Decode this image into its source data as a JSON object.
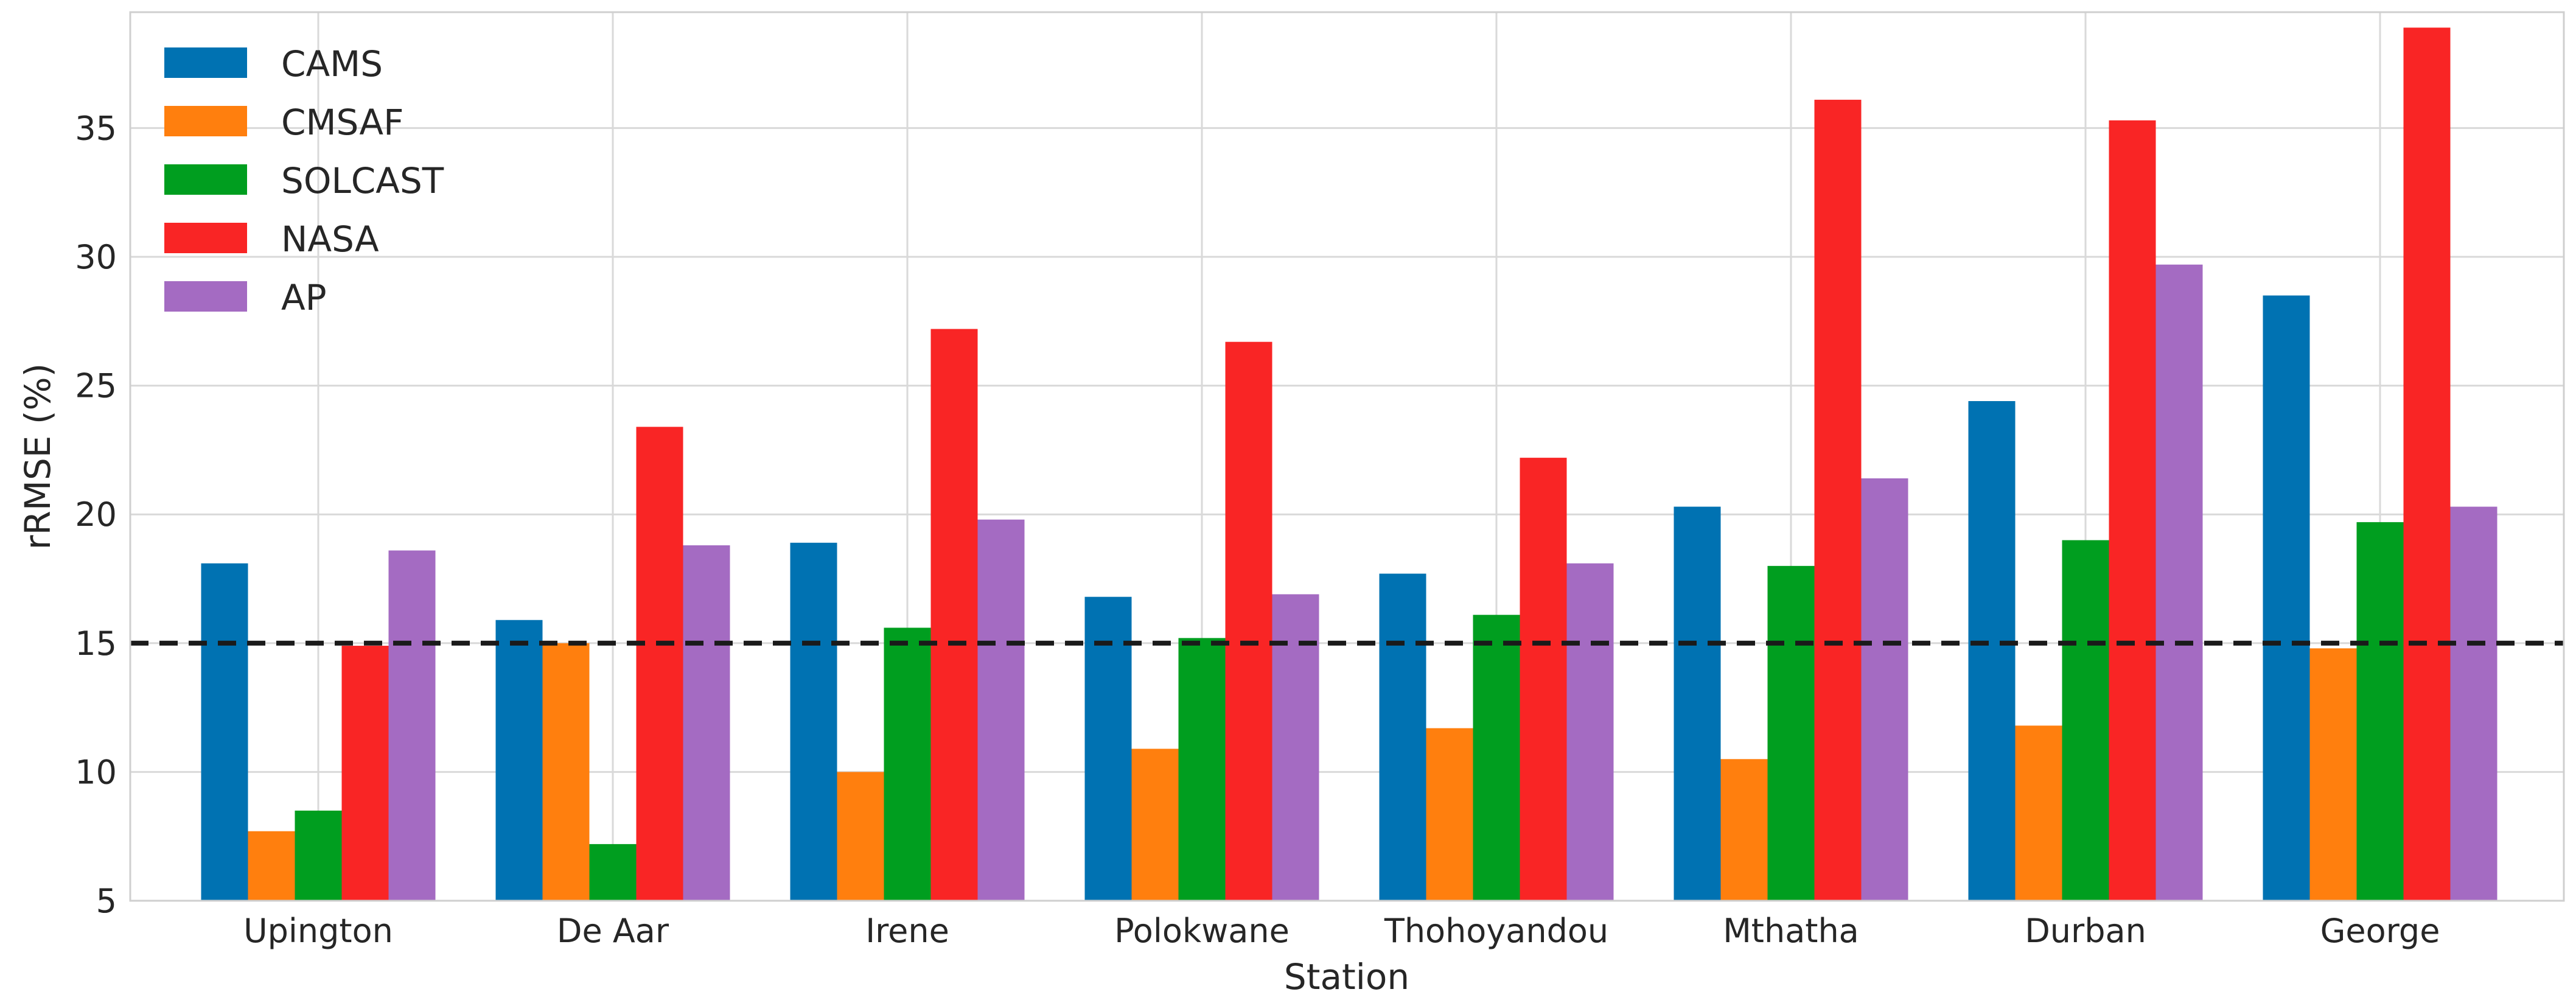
{
  "chart_data": {
    "type": "bar",
    "title": "",
    "xlabel": "Station",
    "ylabel": "rRMSE (%)",
    "categories": [
      "Upington",
      "De Aar",
      "Irene",
      "Polokwane",
      "Thohoyandou",
      "Mthatha",
      "Durban",
      "George"
    ],
    "series": [
      {
        "name": "CAMS",
        "color": "#0072b2",
        "values": [
          18.1,
          15.9,
          18.9,
          16.8,
          17.7,
          20.3,
          24.4,
          28.5
        ]
      },
      {
        "name": "CMSAF",
        "color": "#ff7f0e",
        "values": [
          7.7,
          15.0,
          10.0,
          10.9,
          11.7,
          10.5,
          11.8,
          14.8
        ]
      },
      {
        "name": "SOLCAST",
        "color": "#009e1f",
        "values": [
          8.5,
          7.2,
          15.6,
          15.2,
          16.1,
          18.0,
          19.0,
          19.7
        ]
      },
      {
        "name": "NASA",
        "color": "#f92525",
        "values": [
          14.9,
          23.4,
          27.2,
          26.7,
          22.2,
          36.1,
          35.3,
          38.9
        ]
      },
      {
        "name": "AP",
        "color": "#a46bc2",
        "values": [
          18.6,
          18.8,
          19.8,
          16.9,
          18.1,
          21.4,
          29.7,
          20.3
        ]
      }
    ],
    "ylim": [
      5,
      39.5
    ],
    "yticks": [
      5,
      10,
      15,
      20,
      25,
      30,
      35
    ],
    "threshold": 15,
    "grid": true,
    "legend_position": "top-left"
  }
}
